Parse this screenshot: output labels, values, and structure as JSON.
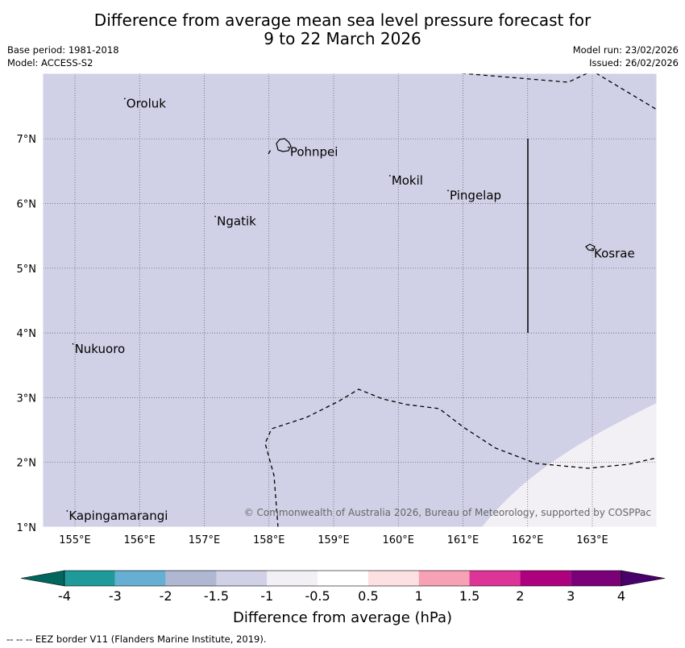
{
  "title": {
    "line1": "Difference from average mean sea level pressure forecast for",
    "line2": "9 to 22 March 2026"
  },
  "meta": {
    "base_period": "Base period: 1981-2018",
    "model": "Model: ACCESS-S2",
    "model_run": "Model run: 23/02/2026",
    "issued": "Issued: 26/02/2026"
  },
  "map": {
    "lon_range": [
      154.5,
      164.0
    ],
    "lat_range": [
      1.0,
      8.0
    ],
    "lon_ticks": [
      155,
      156,
      157,
      158,
      159,
      160,
      161,
      162,
      163
    ],
    "lon_tick_labels": [
      "155°E",
      "156°E",
      "157°E",
      "158°E",
      "159°E",
      "160°E",
      "161°E",
      "162°E",
      "163°E"
    ],
    "lat_ticks": [
      1,
      2,
      3,
      4,
      5,
      6,
      7
    ],
    "lat_tick_labels": [
      "1°N",
      "2°N",
      "3°N",
      "4°N",
      "5°N",
      "6°N",
      "7°N"
    ],
    "background_color": "#d0d1e6",
    "region_color": "#f2eff5",
    "places": [
      {
        "name": "Oroluk",
        "lon": 155.77,
        "lat": 7.62
      },
      {
        "name": "Pohnpei",
        "lon": 158.3,
        "lat": 6.87
      },
      {
        "name": "Mokil",
        "lon": 159.87,
        "lat": 6.43
      },
      {
        "name": "Pingelap",
        "lon": 160.77,
        "lat": 6.2
      },
      {
        "name": "Ngatik",
        "lon": 157.17,
        "lat": 5.8
      },
      {
        "name": "Kosrae",
        "lon": 163.0,
        "lat": 5.3
      },
      {
        "name": "Nukuoro",
        "lon": 154.97,
        "lat": 3.83
      },
      {
        "name": "Kapingamarangi",
        "lon": 154.88,
        "lat": 1.25
      }
    ],
    "copyright": "© Commonwealth of Australia 2026, Bureau of Meteorology, supported by COSPPac"
  },
  "colorbar": {
    "title": "Difference from average (hPa)",
    "colors": [
      "#01665e",
      "#1f9a9a",
      "#67aed3",
      "#b0b7d2",
      "#d0d1e6",
      "#f2eff5",
      "#ffffff",
      "#fde0e1",
      "#f7a1b4",
      "#dd3497",
      "#ae017e",
      "#7a0177",
      "#49006a"
    ],
    "labels": [
      "-4",
      "-3",
      "-2",
      "-1.5",
      "-1",
      "-0.5",
      "0.5",
      "1",
      "1.5",
      "2",
      "3",
      "4"
    ]
  },
  "eez_legend": "--  --  -- EEZ border V11 (Flanders Marine Institute, 2019)."
}
